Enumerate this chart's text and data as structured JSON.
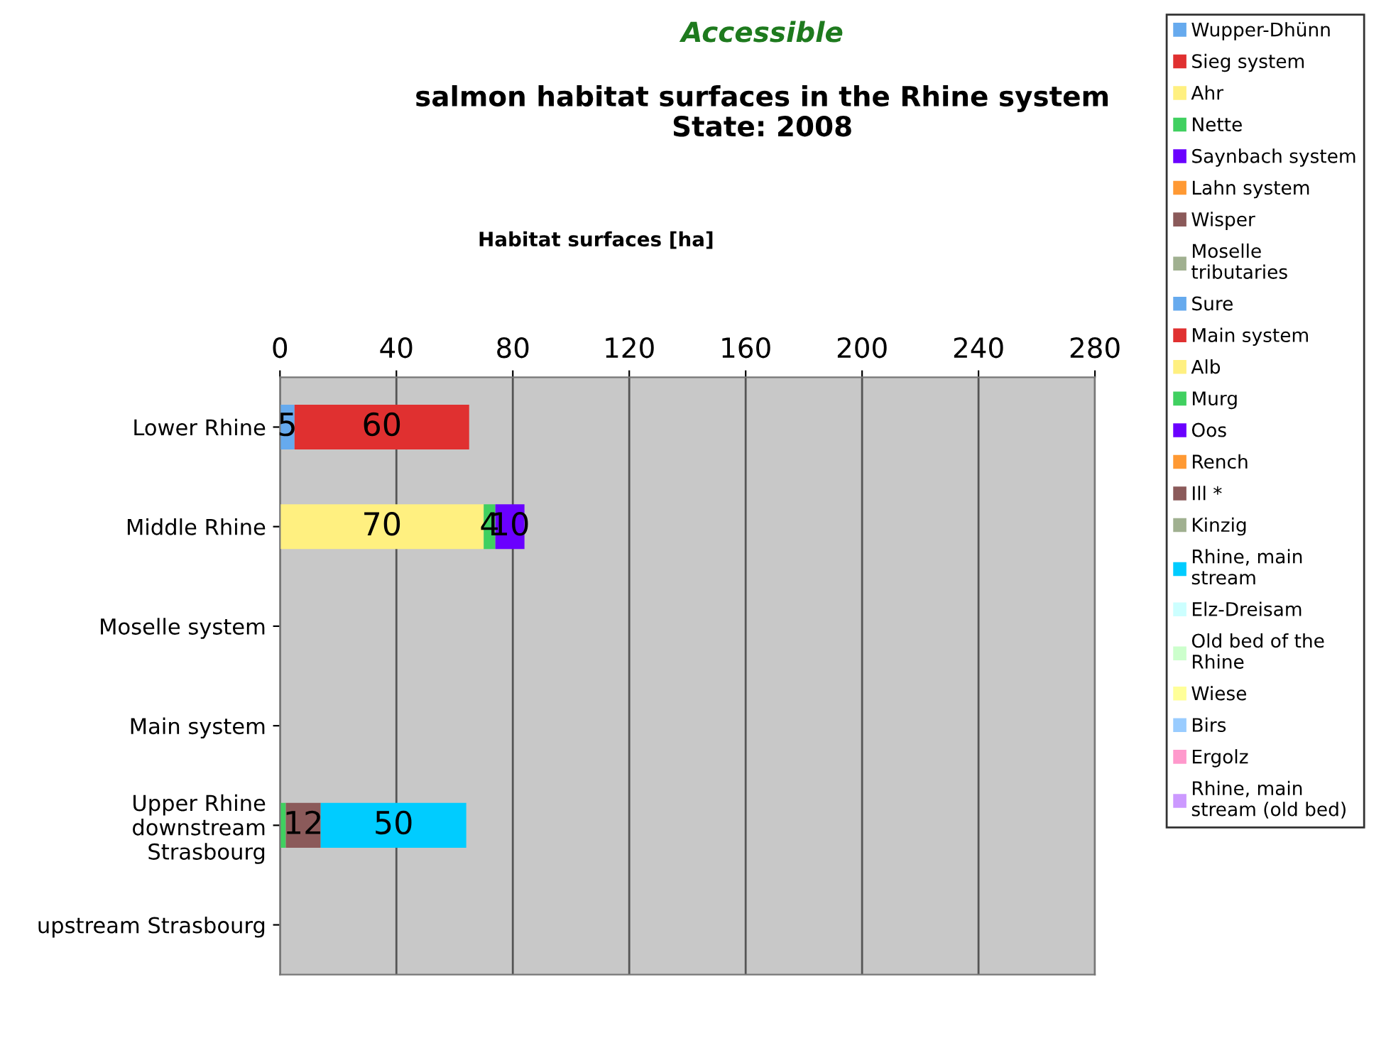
{
  "chart_data": {
    "type": "bar",
    "orientation": "horizontal",
    "stacked": true,
    "title": "Accessible",
    "subtitle": "salmon habitat surfaces in the Rhine system\nState: 2008",
    "annotations": [
      "Habitat surfaces [ha]"
    ],
    "categories": [
      "Lower Rhine",
      "Middle Rhine",
      "Moselle system",
      "Main system",
      "Upper Rhine\ndownstream\nStrasbourg",
      "upstream Strasbourg"
    ],
    "xlim": [
      0,
      280
    ],
    "xticks": [
      0,
      40,
      80,
      120,
      160,
      200,
      240,
      280
    ],
    "grid": "x",
    "legend": "right",
    "series": [
      {
        "name": "Wupper-Dhünn",
        "color": "#66aaee",
        "values": [
          5,
          null,
          null,
          null,
          null,
          null
        ],
        "value_labels": [
          "5",
          null,
          null,
          null,
          null,
          null
        ]
      },
      {
        "name": "Sieg system",
        "color": "#e03030",
        "values": [
          60,
          null,
          null,
          null,
          null,
          null
        ],
        "value_labels": [
          "60",
          null,
          null,
          null,
          null,
          null
        ]
      },
      {
        "name": "Ahr",
        "color": "#fff080",
        "values": [
          null,
          70,
          null,
          null,
          null,
          null
        ],
        "value_labels": [
          null,
          "70",
          null,
          null,
          null,
          null
        ]
      },
      {
        "name": "Nette",
        "color": "#40d060",
        "values": [
          null,
          4,
          null,
          null,
          null,
          null
        ],
        "value_labels": [
          null,
          "4",
          null,
          null,
          null,
          null
        ]
      },
      {
        "name": "Saynbach system",
        "color": "#6a00ff",
        "values": [
          null,
          10,
          null,
          null,
          null,
          null
        ],
        "value_labels": [
          null,
          "10",
          null,
          null,
          null,
          null
        ]
      },
      {
        "name": "Lahn system",
        "color": "#ff9933",
        "values": [
          null,
          null,
          null,
          null,
          null,
          null
        ]
      },
      {
        "name": "Wisper",
        "color": "#8b5a5a",
        "values": [
          null,
          null,
          null,
          null,
          null,
          null
        ]
      },
      {
        "name": "Moselle tributaries",
        "color": "#a0b090",
        "values": [
          null,
          null,
          null,
          null,
          null,
          null
        ]
      },
      {
        "name": "Sure",
        "color": "#66aaee",
        "values": [
          null,
          null,
          null,
          null,
          null,
          null
        ]
      },
      {
        "name": "Main system",
        "color": "#e03030",
        "values": [
          null,
          null,
          null,
          null,
          null,
          null
        ]
      },
      {
        "name": "Alb",
        "color": "#fff080",
        "values": [
          null,
          null,
          null,
          null,
          null,
          null
        ]
      },
      {
        "name": "Murg",
        "color": "#40d060",
        "values": [
          null,
          null,
          null,
          null,
          2,
          null
        ],
        "value_labels": [
          null,
          null,
          null,
          null,
          null,
          null
        ]
      },
      {
        "name": "Oos",
        "color": "#6a00ff",
        "values": [
          null,
          null,
          null,
          null,
          null,
          null
        ]
      },
      {
        "name": "Rench",
        "color": "#ff9933",
        "values": [
          null,
          null,
          null,
          null,
          null,
          null
        ]
      },
      {
        "name": "Ill *",
        "color": "#8b5a5a",
        "values": [
          null,
          null,
          null,
          null,
          12,
          null
        ],
        "value_labels": [
          null,
          null,
          null,
          null,
          "12",
          null
        ]
      },
      {
        "name": "Kinzig",
        "color": "#a0b090",
        "values": [
          null,
          null,
          null,
          null,
          null,
          null
        ]
      },
      {
        "name": "Rhine, main stream",
        "color": "#00ccff",
        "values": [
          null,
          null,
          null,
          null,
          50,
          null
        ],
        "value_labels": [
          null,
          null,
          null,
          null,
          "50",
          null
        ]
      },
      {
        "name": "Elz-Dreisam",
        "color": "#ccffff",
        "values": [
          null,
          null,
          null,
          null,
          null,
          null
        ]
      },
      {
        "name": "Old bed of the Rhine",
        "color": "#ccffcc",
        "values": [
          null,
          null,
          null,
          null,
          null,
          null
        ]
      },
      {
        "name": "Wiese",
        "color": "#ffff99",
        "values": [
          null,
          null,
          null,
          null,
          null,
          null
        ]
      },
      {
        "name": "Birs",
        "color": "#99ccff",
        "values": [
          null,
          null,
          null,
          null,
          null,
          null
        ]
      },
      {
        "name": "Ergolz",
        "color": "#ff99cc",
        "values": [
          null,
          null,
          null,
          null,
          null,
          null
        ]
      },
      {
        "name": "Rhine, main stream (old bed)",
        "color": "#cc99ff",
        "values": [
          null,
          null,
          null,
          null,
          null,
          null
        ]
      }
    ]
  }
}
